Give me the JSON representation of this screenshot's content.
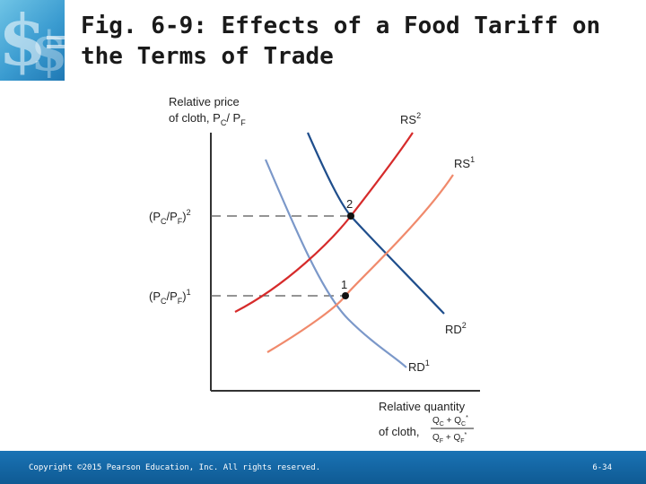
{
  "slide": {
    "title_line1": "Fig. 6-9: Effects of a Food Tariff on",
    "title_line2": "the Terms of Trade"
  },
  "diagram": {
    "y_axis_label_line1": "Relative price",
    "y_axis_label_line2": "of cloth, P",
    "y_axis_label_sub1": "C",
    "y_axis_label_mid": "/ P",
    "y_axis_label_sub2": "F",
    "x_axis_label_line1": "Relative quantity",
    "x_axis_label_line2": "of cloth,",
    "x_axis_fraction_num": "Q",
    "x_axis_fraction_num_sub": "C",
    "x_axis_fraction_num_plus": " + Q",
    "x_axis_fraction_num_sub2": "C",
    "x_axis_fraction_num_sup2": "*",
    "x_axis_fraction_den": "Q",
    "x_axis_fraction_den_sub": "F",
    "x_axis_fraction_den_plus": " + Q",
    "x_axis_fraction_den_sub2": "F",
    "x_axis_fraction_den_sup2": "*",
    "curves": {
      "RS2": {
        "label": "RS",
        "sup": "2",
        "color": "#d62b2b"
      },
      "RS1": {
        "label": "RS",
        "sup": "1",
        "color": "#f08a6c"
      },
      "RD2": {
        "label": "RD",
        "sup": "2",
        "color": "#1f4e8c"
      },
      "RD1": {
        "label": "RD",
        "sup": "1",
        "color": "#7b98c9"
      }
    },
    "equilibria": [
      {
        "label": "2",
        "price_label": "(P",
        "price_sub1": "C",
        "price_mid": "/P",
        "price_sub2": "F",
        "price_close": ")",
        "price_sup": "2"
      },
      {
        "label": "1",
        "price_label": "(P",
        "price_sub1": "C",
        "price_mid": "/P",
        "price_sub2": "F",
        "price_close": ")",
        "price_sup": "1"
      }
    ]
  },
  "footer": {
    "copyright": "Copyright ©2015 Pearson Education, Inc. All rights reserved.",
    "page_number": "6-34"
  }
}
